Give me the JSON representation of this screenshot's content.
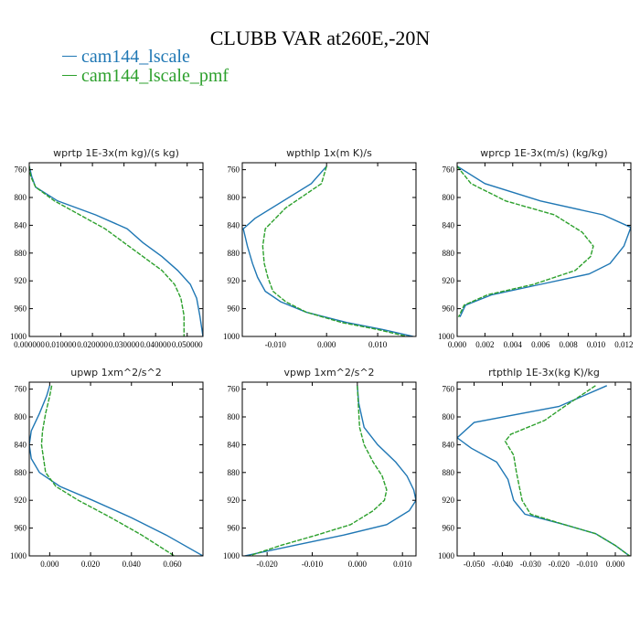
{
  "title": "CLUBB VAR at260E,-20N",
  "legend": [
    {
      "label": "cam144_lscale",
      "color": "#1f77b4"
    },
    {
      "label": "cam144_lscale_pmf",
      "color": "#2ca02c"
    }
  ],
  "chart_data": [
    {
      "type": "line",
      "title": "wprtp  1E-3x(m kg)/(s kg)",
      "xlim": [
        0,
        0.055
      ],
      "ylim": [
        1000,
        750
      ],
      "yinvert": true,
      "yticks": [
        760,
        800,
        840,
        880,
        920,
        960,
        1000
      ],
      "xticks": [
        0,
        0.01,
        0.02,
        0.03,
        0.04,
        0.05
      ],
      "xticklabels": [
        "0.000000",
        "0.010000",
        "0.020000",
        "0.030000",
        "0.040000",
        "0.050000"
      ],
      "series": [
        {
          "name": "cam144_lscale",
          "color": "#1f77b4",
          "dash": false,
          "x": [
            0.0,
            0.0008,
            0.002,
            0.009,
            0.021,
            0.031,
            0.036,
            0.042,
            0.047,
            0.051,
            0.053,
            0.054,
            0.055
          ],
          "y": [
            755,
            770,
            785,
            805,
            825,
            845,
            865,
            885,
            905,
            925,
            945,
            970,
            1000
          ]
        },
        {
          "name": "cam144_lscale_pmf",
          "color": "#2ca02c",
          "dash": true,
          "x": [
            0.0,
            0.0005,
            0.002,
            0.008,
            0.016,
            0.024,
            0.03,
            0.036,
            0.042,
            0.046,
            0.048,
            0.049,
            0.049
          ],
          "y": [
            755,
            770,
            785,
            805,
            825,
            845,
            865,
            885,
            905,
            925,
            945,
            970,
            1000
          ]
        }
      ]
    },
    {
      "type": "line",
      "title": "wpthlp  1x(m K)/s",
      "xlim": [
        -0.0165,
        0.0175
      ],
      "ylim": [
        1000,
        750
      ],
      "yinvert": true,
      "yticks": [
        760,
        800,
        840,
        880,
        920,
        960,
        1000
      ],
      "xticks": [
        -0.01,
        0,
        0.01
      ],
      "xticklabels": [
        "-0.010",
        "0.000",
        "0.010"
      ],
      "series": [
        {
          "name": "cam144_lscale",
          "color": "#1f77b4",
          "dash": false,
          "x": [
            0.0,
            -0.003,
            -0.014,
            -0.0163,
            -0.0155,
            -0.0145,
            -0.0135,
            -0.012,
            -0.009,
            -0.004,
            0.004,
            0.011,
            0.017
          ],
          "y": [
            755,
            780,
            830,
            845,
            870,
            895,
            915,
            935,
            950,
            965,
            980,
            990,
            1000
          ]
        },
        {
          "name": "cam144_lscale_pmf",
          "color": "#2ca02c",
          "dash": true,
          "x": [
            0.0,
            -0.001,
            -0.008,
            -0.012,
            -0.0125,
            -0.0122,
            -0.0115,
            -0.0105,
            -0.008,
            -0.004,
            0.003,
            0.01,
            0.0175
          ],
          "y": [
            755,
            780,
            815,
            845,
            870,
            895,
            915,
            935,
            950,
            965,
            980,
            990,
            1003
          ]
        }
      ]
    },
    {
      "type": "line",
      "title": "wprcp  1E-3x(m/s) (kg/kg)",
      "xlim": [
        0,
        0.0125
      ],
      "ylim": [
        1000,
        750
      ],
      "yinvert": true,
      "yticks": [
        760,
        800,
        840,
        880,
        920,
        960,
        1000
      ],
      "xticks": [
        0,
        0.002,
        0.004,
        0.006,
        0.008,
        0.01,
        0.012
      ],
      "xticklabels": [
        "0.000",
        "0.002",
        "0.004",
        "0.006",
        "0.008",
        "0.010",
        "0.012"
      ],
      "series": [
        {
          "name": "cam144_lscale",
          "color": "#1f77b4",
          "dash": false,
          "x": [
            0.0,
            0.0004,
            0.002,
            0.006,
            0.0105,
            0.0125,
            0.012,
            0.011,
            0.0095,
            0.006,
            0.0025,
            0.0006,
            0.0002
          ],
          "y": [
            755,
            760,
            780,
            805,
            825,
            843,
            870,
            895,
            910,
            925,
            940,
            955,
            972
          ]
        },
        {
          "name": "cam144_lscale_pmf",
          "color": "#2ca02c",
          "dash": true,
          "x": [
            0.0,
            0.0002,
            0.001,
            0.0035,
            0.007,
            0.009,
            0.0098,
            0.0096,
            0.0085,
            0.0055,
            0.0022,
            0.0005,
            0.0001
          ],
          "y": [
            755,
            760,
            780,
            805,
            825,
            850,
            870,
            885,
            905,
            925,
            940,
            955,
            972
          ]
        }
      ]
    },
    {
      "type": "line",
      "title": "upwp  1xm^2/s^2",
      "xlim": [
        -0.01,
        0.075
      ],
      "ylim": [
        1000,
        750
      ],
      "yinvert": true,
      "yticks": [
        760,
        800,
        840,
        880,
        920,
        960,
        1000
      ],
      "xticks": [
        0,
        0.02,
        0.04,
        0.06
      ],
      "xticklabels": [
        "0.000",
        "0.020",
        "0.040",
        "0.060"
      ],
      "series": [
        {
          "name": "cam144_lscale",
          "color": "#1f77b4",
          "dash": false,
          "x": [
            0.0,
            -0.0015,
            -0.005,
            -0.009,
            -0.01,
            -0.009,
            -0.005,
            0.005,
            0.021,
            0.04,
            0.057,
            0.075
          ],
          "y": [
            755,
            770,
            795,
            820,
            840,
            860,
            880,
            900,
            920,
            945,
            970,
            1000
          ]
        },
        {
          "name": "cam144_lscale_pmf",
          "color": "#2ca02c",
          "dash": true,
          "x": [
            0.001,
            0.0,
            -0.002,
            -0.0035,
            -0.004,
            -0.003,
            -0.002,
            0.003,
            0.014,
            0.03,
            0.045,
            0.061
          ],
          "y": [
            755,
            770,
            795,
            820,
            840,
            860,
            880,
            900,
            920,
            945,
            970,
            1000
          ]
        }
      ]
    },
    {
      "type": "line",
      "title": "vpwp  1xm^2/s^2",
      "xlim": [
        -0.0255,
        0.013
      ],
      "ylim": [
        1000,
        750
      ],
      "yinvert": true,
      "yticks": [
        760,
        800,
        840,
        880,
        920,
        960,
        1000
      ],
      "xticks": [
        -0.02,
        -0.01,
        0,
        0.01
      ],
      "xticklabels": [
        "-0.020",
        "-0.010",
        "0.000",
        "0.010"
      ],
      "series": [
        {
          "name": "cam144_lscale",
          "color": "#1f77b4",
          "dash": false,
          "x": [
            0.0,
            0.0003,
            0.0015,
            0.0045,
            0.0085,
            0.011,
            0.0125,
            0.013,
            0.0115,
            0.0065,
            -0.003,
            -0.014,
            -0.025
          ],
          "y": [
            755,
            780,
            815,
            840,
            865,
            885,
            905,
            920,
            935,
            955,
            970,
            985,
            1000
          ]
        },
        {
          "name": "cam144_lscale_pmf",
          "color": "#2ca02c",
          "dash": true,
          "x": [
            0.0,
            0.0002,
            0.0005,
            0.0015,
            0.0035,
            0.0055,
            0.0065,
            0.006,
            0.0035,
            -0.0015,
            -0.009,
            -0.017,
            -0.024
          ],
          "y": [
            755,
            780,
            815,
            840,
            865,
            885,
            905,
            920,
            935,
            955,
            970,
            985,
            1000
          ]
        }
      ]
    },
    {
      "type": "line",
      "title": "rtpthlp  1E-3x(kg K)/kg",
      "xlim": [
        -0.056,
        0.0055
      ],
      "ylim": [
        1000,
        750
      ],
      "yinvert": true,
      "yticks": [
        760,
        800,
        840,
        880,
        920,
        960,
        1000
      ],
      "xticks": [
        -0.05,
        -0.04,
        -0.03,
        -0.02,
        -0.01,
        0
      ],
      "xticklabels": [
        "-0.050",
        "-0.040",
        "-0.030",
        "-0.020",
        "-0.010",
        "0.000"
      ],
      "series": [
        {
          "name": "cam144_lscale",
          "color": "#1f77b4",
          "dash": false,
          "x": [
            -0.003,
            -0.02,
            -0.05,
            -0.056,
            -0.051,
            -0.042,
            -0.038,
            -0.036,
            -0.035,
            -0.032,
            -0.018,
            -0.007,
            0.0,
            0.005
          ],
          "y": [
            755,
            785,
            808,
            830,
            845,
            865,
            890,
            920,
            925,
            940,
            955,
            968,
            985,
            1000
          ]
        },
        {
          "name": "cam144_lscale_pmf",
          "color": "#2ca02c",
          "dash": true,
          "x": [
            -0.007,
            -0.018,
            -0.025,
            -0.037,
            -0.039,
            -0.036,
            -0.035,
            -0.034,
            -0.033,
            -0.03,
            -0.018,
            -0.007,
            0.0,
            0.005
          ],
          "y": [
            755,
            785,
            805,
            825,
            835,
            855,
            880,
            900,
            920,
            940,
            955,
            968,
            985,
            1000
          ]
        }
      ]
    }
  ]
}
